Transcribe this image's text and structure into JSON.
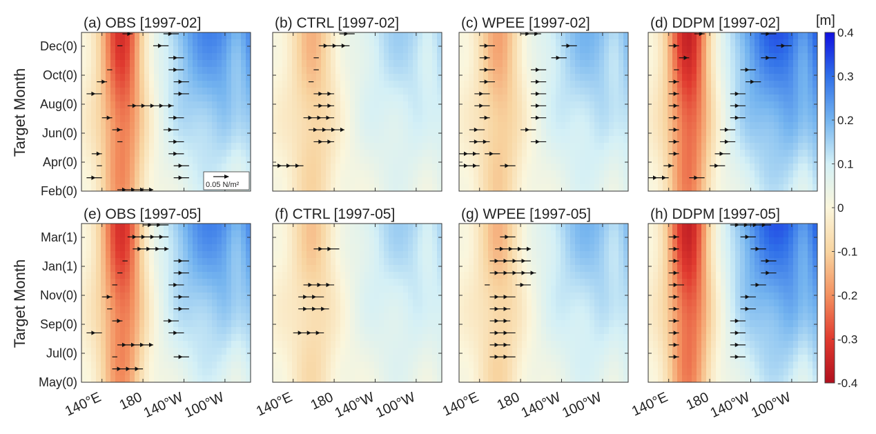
{
  "chart_data": {
    "type": "heatmap",
    "variable_unit": "[m]",
    "ylabel": "Target Month",
    "x_ticks": [
      "140°E",
      "180",
      "140°W",
      "100°W"
    ],
    "x_tick_lon": [
      140,
      180,
      220,
      260
    ],
    "x_range": [
      120,
      285
    ],
    "colorbar": {
      "range": [
        -0.4,
        0.4
      ],
      "ticks": [
        "0.4",
        "0.3",
        "0.2",
        "0.1",
        "0",
        "-0.1",
        "-0.2",
        "-0.3",
        "-0.4"
      ],
      "colors": [
        "#1010e0",
        "#2f6fe8",
        "#74b4ef",
        "#d4f0f6",
        "#fbf6dc",
        "#f8d4a0",
        "#f3905f",
        "#e03a2f",
        "#b0101e"
      ]
    },
    "legend_arrow_label": "0.05 N/m²",
    "rows": [
      {
        "y_ticks": [
          "Dec(0)",
          "Oct(0)",
          "Aug(0)",
          "Jun(0)",
          "Apr(0)",
          "Feb(0)"
        ],
        "panels": [
          {
            "title": "(a) OBS [1997-02]",
            "field": {
              "west": -0.27,
              "zonal": 0.6,
              "trend": 0.35
            },
            "arrows": [
              [
                0,
                160,
                170,
                200
              ],
              [
                1,
                155,
                160,
                190
              ],
              [
                2,
                150,
                150,
                205
              ],
              [
                3,
                145,
                150,
                205
              ],
              [
                4,
                135,
                145,
                210
              ],
              [
                5,
                125,
                140,
                210
              ],
              [
                6,
                165,
                210
              ],
              [
                7,
                140,
                150,
                205
              ],
              [
                8,
                150,
                160,
                200
              ],
              [
                9,
                155,
                160,
                205
              ],
              [
                10,
                130,
                140,
                205
              ],
              [
                11,
                135,
                140,
                210
              ],
              [
                12,
                125,
                140,
                210
              ],
              [
                13,
                155,
                190
              ]
            ],
            "legend": true
          },
          {
            "title": "(b) CTRL [1997-02]",
            "field": {
              "west": -0.12,
              "zonal": 0.35,
              "trend": 0.1
            },
            "arrows": [
              [
                0,
                185,
                200
              ],
              [
                1,
                165,
                195
              ],
              [
                2,
                160,
                165
              ],
              [
                3,
                160,
                165
              ],
              [
                4,
                155,
                160
              ],
              [
                5,
                160,
                180
              ],
              [
                6,
                160,
                180
              ],
              [
                7,
                150,
                180
              ],
              [
                8,
                155,
                190
              ],
              [
                9,
                160,
                180
              ],
              [
                11,
                120,
                150
              ]
            ],
            "legend": false
          },
          {
            "title": "(c) WPEE [1997-02]",
            "field": {
              "west": -0.14,
              "zonal": 0.45,
              "trend": 0.15
            },
            "arrows": [
              [
                0,
                180,
                200
              ],
              [
                1,
                140,
                155,
                220
              ],
              [
                2,
                140,
                150,
                210
              ],
              [
                3,
                140,
                155,
                190
              ],
              [
                4,
                140,
                155,
                190
              ],
              [
                5,
                135,
                150,
                190
              ],
              [
                6,
                135,
                150,
                190
              ],
              [
                7,
                140,
                150,
                190
              ],
              [
                8,
                130,
                145,
                180
              ],
              [
                9,
                130,
                150,
                190
              ],
              [
                10,
                120,
                140,
                145
              ],
              [
                11,
                120,
                140,
                160
              ]
            ],
            "legend": false
          },
          {
            "title": "(d) DDPM [1997-02]",
            "field": {
              "west": -0.3,
              "zonal": 0.75,
              "trend": 0.3
            },
            "arrows": [
              [
                0,
                165,
                175,
                230
              ],
              [
                1,
                140,
                150,
                245
              ],
              [
                2,
                150,
                160,
                230
              ],
              [
                3,
                145,
                150,
                210
              ],
              [
                4,
                140,
                150,
                215
              ],
              [
                5,
                140,
                150,
                200
              ],
              [
                6,
                140,
                150,
                200
              ],
              [
                7,
                140,
                150,
                200
              ],
              [
                8,
                140,
                150,
                190
              ],
              [
                9,
                140,
                150,
                190
              ],
              [
                10,
                140,
                150,
                185
              ],
              [
                11,
                135,
                145,
                180
              ],
              [
                12,
                120,
                140,
                160
              ]
            ],
            "legend": false
          }
        ]
      },
      {
        "y_ticks": [
          "Mar(1)",
          "Jan(1)",
          "Nov(0)",
          "Sep(0)",
          "Jul(0)",
          "May(0)"
        ],
        "panels": [
          {
            "title": "(e) OBS [1997-05]",
            "field": {
              "west": -0.27,
              "zonal": 0.6,
              "trend": 0.35
            },
            "arrows": [
              [
                0,
                180,
                205
              ],
              [
                1,
                165,
                205
              ],
              [
                2,
                170,
                205
              ],
              [
                3,
                160,
                165,
                210
              ],
              [
                4,
                155,
                160,
                210
              ],
              [
                5,
                150,
                155,
                205
              ],
              [
                6,
                140,
                150,
                210
              ],
              [
                7,
                145,
                150,
                210
              ],
              [
                8,
                150,
                160,
                200
              ],
              [
                9,
                125,
                140,
                205
              ],
              [
                10,
                155,
                190
              ],
              [
                11,
                150,
                155,
                210
              ],
              [
                12,
                150,
                180
              ]
            ],
            "legend": false
          },
          {
            "title": "(f) CTRL [1997-05]",
            "field": {
              "west": -0.1,
              "zonal": 0.35,
              "trend": 0.1
            },
            "arrows": [
              [
                2,
                160,
                185
              ],
              [
                5,
                150,
                180
              ],
              [
                6,
                145,
                170
              ],
              [
                7,
                145,
                175
              ],
              [
                9,
                140,
                170
              ]
            ],
            "legend": false
          },
          {
            "title": "(g) WPEE [1997-05]",
            "field": {
              "west": -0.12,
              "zonal": 0.45,
              "trend": 0.12
            },
            "arrows": [
              [
                1,
                160,
                175
              ],
              [
                2,
                155,
                190
              ],
              [
                3,
                150,
                190
              ],
              [
                4,
                150,
                195
              ],
              [
                5,
                145,
                150,
                175
              ],
              [
                6,
                150,
                175
              ],
              [
                7,
                150,
                170
              ],
              [
                8,
                150,
                170
              ],
              [
                9,
                150,
                175
              ],
              [
                10,
                150,
                170
              ],
              [
                11,
                150,
                175
              ]
            ],
            "legend": false
          },
          {
            "title": "(h) DDPM [1997-05]",
            "field": {
              "west": -0.3,
              "zonal": 0.75,
              "trend": 0.3
            },
            "arrows": [
              [
                0,
                200,
                240
              ],
              [
                1,
                140,
                150,
                210
              ],
              [
                2,
                140,
                150,
                220
              ],
              [
                3,
                140,
                150,
                230
              ],
              [
                4,
                140,
                150,
                230
              ],
              [
                5,
                140,
                155,
                220
              ],
              [
                6,
                140,
                150,
                210
              ],
              [
                7,
                140,
                150,
                210
              ],
              [
                8,
                140,
                150,
                200
              ],
              [
                9,
                140,
                150,
                200
              ],
              [
                10,
                140,
                150,
                200
              ],
              [
                11,
                140,
                150,
                200
              ]
            ],
            "legend": false
          }
        ]
      }
    ]
  }
}
